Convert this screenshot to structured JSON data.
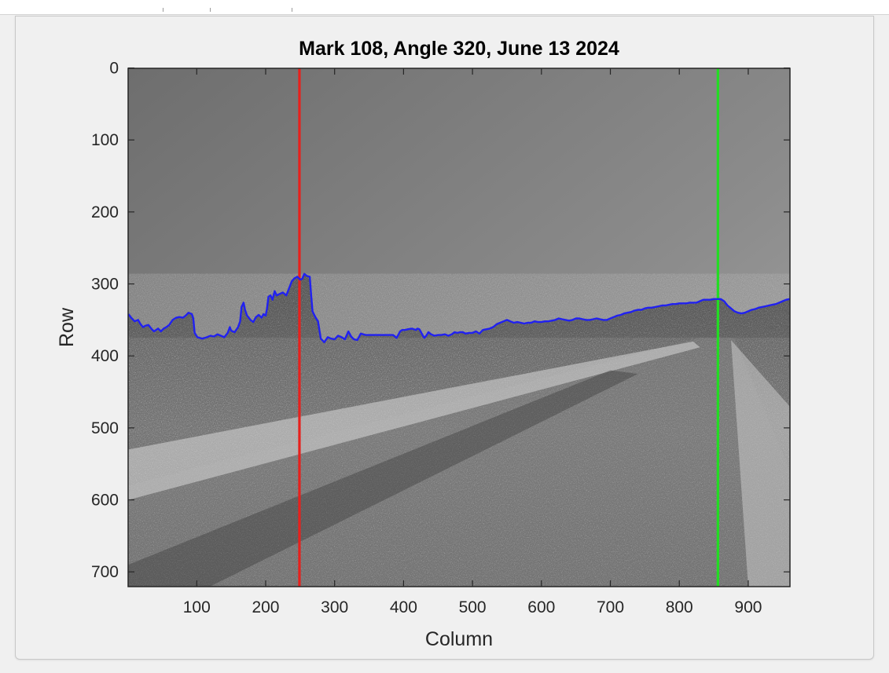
{
  "chart_data": {
    "type": "image",
    "title": "Mark 108, Angle 320, June 13 2024",
    "xlabel": "Column",
    "ylabel": "Row",
    "xlim": [
      0.5,
      960.5
    ],
    "ylim": [
      720.5,
      0.5
    ],
    "y_direction": "reversed",
    "xticks": [
      100,
      200,
      300,
      400,
      500,
      600,
      700,
      800,
      900
    ],
    "yticks": [
      0,
      100,
      200,
      300,
      400,
      500,
      600,
      700
    ],
    "image_content": "grayscale photo of a desert gravel road with shrubs",
    "vertical_lines": [
      {
        "column": 249,
        "color": "#e8201c"
      },
      {
        "column": 856,
        "color": "#22dd22"
      }
    ],
    "horizon_line": {
      "color": "#2121f0",
      "points": [
        [
          1,
          342
        ],
        [
          5,
          347
        ],
        [
          10,
          352
        ],
        [
          15,
          350
        ],
        [
          18,
          355
        ],
        [
          22,
          360
        ],
        [
          26,
          358
        ],
        [
          30,
          357
        ],
        [
          34,
          362
        ],
        [
          38,
          366
        ],
        [
          44,
          362
        ],
        [
          48,
          366
        ],
        [
          52,
          362
        ],
        [
          56,
          360
        ],
        [
          60,
          357
        ],
        [
          65,
          350
        ],
        [
          70,
          347
        ],
        [
          75,
          346
        ],
        [
          80,
          347
        ],
        [
          84,
          344
        ],
        [
          88,
          340
        ],
        [
          93,
          342
        ],
        [
          95,
          348
        ],
        [
          97,
          368
        ],
        [
          101,
          374
        ],
        [
          108,
          376
        ],
        [
          115,
          374
        ],
        [
          120,
          372
        ],
        [
          125,
          373
        ],
        [
          130,
          370
        ],
        [
          135,
          372
        ],
        [
          140,
          374
        ],
        [
          145,
          368
        ],
        [
          148,
          360
        ],
        [
          150,
          365
        ],
        [
          155,
          367
        ],
        [
          160,
          360
        ],
        [
          163,
          352
        ],
        [
          165,
          332
        ],
        [
          168,
          326
        ],
        [
          170,
          336
        ],
        [
          173,
          344
        ],
        [
          178,
          350
        ],
        [
          182,
          353
        ],
        [
          186,
          346
        ],
        [
          190,
          343
        ],
        [
          194,
          347
        ],
        [
          197,
          342
        ],
        [
          200,
          344
        ],
        [
          202,
          334
        ],
        [
          204,
          318
        ],
        [
          207,
          316
        ],
        [
          210,
          322
        ],
        [
          213,
          310
        ],
        [
          216,
          316
        ],
        [
          220,
          314
        ],
        [
          225,
          312
        ],
        [
          230,
          316
        ],
        [
          234,
          306
        ],
        [
          238,
          296
        ],
        [
          242,
          292
        ],
        [
          246,
          290
        ],
        [
          250,
          294
        ],
        [
          253,
          293
        ],
        [
          256,
          286
        ],
        [
          260,
          289
        ],
        [
          264,
          290
        ],
        [
          266,
          316
        ],
        [
          268,
          338
        ],
        [
          272,
          346
        ],
        [
          276,
          352
        ],
        [
          280,
          376
        ],
        [
          285,
          381
        ],
        [
          290,
          374
        ],
        [
          295,
          376
        ],
        [
          300,
          377
        ],
        [
          305,
          372
        ],
        [
          310,
          374
        ],
        [
          315,
          377
        ],
        [
          320,
          366
        ],
        [
          324,
          373
        ],
        [
          328,
          377
        ],
        [
          333,
          378
        ],
        [
          338,
          369
        ],
        [
          345,
          371
        ],
        [
          355,
          371
        ],
        [
          365,
          371
        ],
        [
          375,
          371
        ],
        [
          385,
          371
        ],
        [
          390,
          375
        ],
        [
          395,
          366
        ],
        [
          398,
          364
        ],
        [
          402,
          364
        ],
        [
          406,
          363
        ],
        [
          412,
          362
        ],
        [
          418,
          364
        ],
        [
          420,
          362
        ],
        [
          423,
          363
        ],
        [
          427,
          370
        ],
        [
          430,
          375
        ],
        [
          433,
          372
        ],
        [
          436,
          367
        ],
        [
          440,
          370
        ],
        [
          445,
          372
        ],
        [
          450,
          371
        ],
        [
          455,
          371
        ],
        [
          460,
          370
        ],
        [
          465,
          372
        ],
        [
          470,
          370
        ],
        [
          474,
          367
        ],
        [
          478,
          368
        ],
        [
          482,
          367
        ],
        [
          486,
          367
        ],
        [
          490,
          369
        ],
        [
          495,
          368
        ],
        [
          500,
          368
        ],
        [
          505,
          366
        ],
        [
          510,
          369
        ],
        [
          515,
          364
        ],
        [
          520,
          363
        ],
        [
          525,
          362
        ],
        [
          530,
          360
        ],
        [
          535,
          356
        ],
        [
          540,
          354
        ],
        [
          545,
          352
        ],
        [
          550,
          350
        ],
        [
          555,
          352
        ],
        [
          560,
          354
        ],
        [
          565,
          353
        ],
        [
          570,
          354
        ],
        [
          575,
          355
        ],
        [
          580,
          354
        ],
        [
          585,
          354
        ],
        [
          590,
          352
        ],
        [
          595,
          353
        ],
        [
          600,
          353
        ],
        [
          605,
          352
        ],
        [
          610,
          352
        ],
        [
          615,
          351
        ],
        [
          620,
          350
        ],
        [
          625,
          348
        ],
        [
          630,
          349
        ],
        [
          635,
          350
        ],
        [
          640,
          351
        ],
        [
          645,
          350
        ],
        [
          650,
          348
        ],
        [
          655,
          348
        ],
        [
          660,
          349
        ],
        [
          665,
          350
        ],
        [
          670,
          350
        ],
        [
          675,
          349
        ],
        [
          680,
          348
        ],
        [
          685,
          349
        ],
        [
          690,
          350
        ],
        [
          695,
          350
        ],
        [
          700,
          348
        ],
        [
          705,
          346
        ],
        [
          710,
          344
        ],
        [
          715,
          343
        ],
        [
          720,
          341
        ],
        [
          725,
          340
        ],
        [
          730,
          339
        ],
        [
          735,
          337
        ],
        [
          740,
          336
        ],
        [
          745,
          336
        ],
        [
          750,
          334
        ],
        [
          755,
          333
        ],
        [
          760,
          333
        ],
        [
          765,
          332
        ],
        [
          770,
          331
        ],
        [
          775,
          330
        ],
        [
          780,
          330
        ],
        [
          785,
          329
        ],
        [
          790,
          328
        ],
        [
          795,
          328
        ],
        [
          800,
          327
        ],
        [
          805,
          327
        ],
        [
          810,
          327
        ],
        [
          815,
          326
        ],
        [
          820,
          326
        ],
        [
          825,
          326
        ],
        [
          830,
          324
        ],
        [
          835,
          322
        ],
        [
          840,
          322
        ],
        [
          845,
          322
        ],
        [
          850,
          321
        ],
        [
          855,
          321
        ],
        [
          860,
          321
        ],
        [
          865,
          324
        ],
        [
          870,
          330
        ],
        [
          875,
          334
        ],
        [
          880,
          338
        ],
        [
          885,
          340
        ],
        [
          890,
          341
        ],
        [
          895,
          340
        ],
        [
          900,
          338
        ],
        [
          905,
          336
        ],
        [
          910,
          335
        ],
        [
          915,
          333
        ],
        [
          920,
          332
        ],
        [
          925,
          331
        ],
        [
          930,
          330
        ],
        [
          935,
          329
        ],
        [
          940,
          328
        ],
        [
          945,
          326
        ],
        [
          950,
          324
        ],
        [
          955,
          322
        ],
        [
          960,
          321
        ]
      ]
    }
  }
}
